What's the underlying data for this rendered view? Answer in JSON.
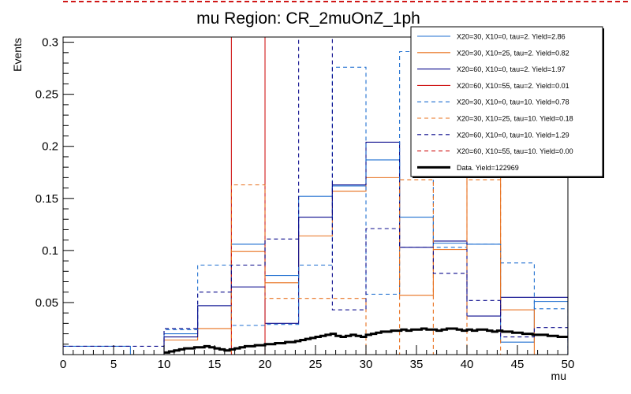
{
  "colors": {
    "blue": "#1f6fd0",
    "orange": "#e8701e",
    "navy": "#0a0a8c",
    "red": "#d01818",
    "data": "#000000",
    "topline": "#d01818"
  },
  "chart_data": {
    "type": "histogram",
    "title": "mu Region: CR_2muOnZ_1ph",
    "xlabel": "mu",
    "ylabel": "Events",
    "xlim": [
      0,
      50
    ],
    "ylim": [
      0,
      0.305
    ],
    "grid": false,
    "legend_placement": "top-right",
    "x_ticks": [
      "0",
      "5",
      "10",
      "15",
      "20",
      "25",
      "30",
      "35",
      "40",
      "45",
      "50"
    ],
    "y_ticks": [
      "0.05",
      "0.1",
      "0.15",
      "0.2",
      "0.25",
      "0.3"
    ],
    "bin_edges": [
      0,
      3.33,
      6.67,
      10,
      13.33,
      16.67,
      20,
      23.33,
      26.67,
      30,
      33.33,
      36.67,
      40,
      43.33,
      46.67,
      50
    ],
    "series": [
      {
        "name": "X20=30, X10=0, tau=2. Yield=2.86",
        "color": "blue",
        "dash": false,
        "values": [
          0.008,
          0.008,
          0.0,
          0.02,
          0.047,
          0.106,
          0.076,
          0.152,
          0.162,
          0.187,
          0.132,
          0.107,
          0.106,
          0.012,
          0.051
        ]
      },
      {
        "name": "X20=30, X10=25, tau=2. Yield=0.82",
        "color": "orange",
        "dash": false,
        "values": [
          0.0,
          0.0,
          0.0,
          0.014,
          0.025,
          0.099,
          0.069,
          0.114,
          0.157,
          0.17,
          0.057,
          0.101,
          0.305,
          0.043,
          0.0
        ]
      },
      {
        "name": "X20=60, X10=0, tau=2. Yield=1.97",
        "color": "navy",
        "dash": false,
        "values": [
          0.0,
          0.0,
          0.0,
          0.017,
          0.047,
          0.065,
          0.03,
          0.132,
          0.163,
          0.204,
          0.103,
          0.109,
          0.037,
          0.055,
          0.055
        ]
      },
      {
        "name": "X20=60, X10=55, tau=2. Yield=0.01",
        "color": "red",
        "dash": false,
        "values": [
          0.0,
          0.0,
          0.0,
          0.0,
          0.0,
          0.305,
          0.0,
          0.0,
          0.0,
          0.0,
          0.0,
          0.0,
          0.0,
          0.0,
          0.0
        ]
      },
      {
        "name": "X20=30, X10=0, tau=10. Yield=0.78",
        "color": "blue",
        "dash": true,
        "values": [
          0.0,
          0.0,
          0.0,
          0.024,
          0.086,
          0.028,
          0.029,
          0.086,
          0.276,
          0.058,
          0.291,
          0.103,
          0.106,
          0.088,
          0.044
        ]
      },
      {
        "name": "X20=30, X10=25, tau=10. Yield=0.18",
        "color": "orange",
        "dash": true,
        "values": [
          0.0,
          0.0,
          0.0,
          0.0,
          0.0,
          0.163,
          0.054,
          0.054,
          0.054,
          0.0,
          0.168,
          0.0,
          0.168,
          0.0,
          0.0
        ]
      },
      {
        "name": "X20=60, X10=0, tau=10. Yield=1.29",
        "color": "navy",
        "dash": true,
        "values": [
          0.008,
          0.008,
          0.008,
          0.025,
          0.06,
          0.086,
          0.111,
          0.305,
          0.043,
          0.121,
          0.103,
          0.078,
          0.052,
          0.017,
          0.026
        ]
      },
      {
        "name": "X20=60, X10=55, tau=10. Yield=0.00",
        "color": "red",
        "dash": true,
        "values": [
          0.0,
          0.0,
          0.0,
          0.0,
          0.0,
          0.0,
          0.0,
          0.0,
          0.0,
          0.0,
          0.0,
          0.0,
          0.0,
          0.0,
          0.0
        ]
      },
      {
        "name": "Data. Yield=122969",
        "color": "data",
        "dash": false,
        "thick": true,
        "values_mu": [
          10,
          10.5,
          11,
          11.5,
          12,
          12.5,
          13,
          13.5,
          14,
          14.5,
          15,
          15.5,
          16,
          16.5,
          17,
          17.5,
          18,
          18.5,
          19,
          19.5,
          20,
          20.5,
          21,
          21.5,
          22,
          22.5,
          23,
          23.5,
          24,
          24.5,
          25,
          25.5,
          26,
          26.5,
          27,
          27.5,
          28,
          28.5,
          29,
          29.5,
          30,
          30.5,
          31,
          31.5,
          32,
          32.5,
          33,
          33.5,
          34,
          34.5,
          35,
          35.5,
          36,
          36.5,
          37,
          37.5,
          38,
          38.5,
          39,
          39.5,
          40,
          40.5,
          41,
          41.5,
          42,
          42.5,
          43,
          43.5,
          44,
          44.5,
          45,
          45.5,
          46,
          46.5,
          47,
          47.5,
          48,
          48.5,
          49,
          49.5
        ],
        "values": [
          0.002,
          0.003,
          0.004,
          0.005,
          0.006,
          0.006,
          0.007,
          0.007,
          0.008,
          0.007,
          0.006,
          0.005,
          0.004,
          0.005,
          0.006,
          0.007,
          0.008,
          0.008,
          0.009,
          0.009,
          0.01,
          0.01,
          0.011,
          0.011,
          0.012,
          0.012,
          0.013,
          0.014,
          0.015,
          0.016,
          0.017,
          0.018,
          0.019,
          0.02,
          0.018,
          0.017,
          0.018,
          0.019,
          0.018,
          0.017,
          0.019,
          0.02,
          0.021,
          0.022,
          0.022,
          0.023,
          0.023,
          0.024,
          0.023,
          0.024,
          0.024,
          0.025,
          0.024,
          0.024,
          0.023,
          0.024,
          0.025,
          0.025,
          0.024,
          0.023,
          0.024,
          0.023,
          0.024,
          0.024,
          0.023,
          0.022,
          0.023,
          0.022,
          0.022,
          0.021,
          0.021,
          0.02,
          0.02,
          0.019,
          0.019,
          0.019,
          0.018,
          0.018,
          0.017,
          0.017
        ]
      }
    ]
  }
}
